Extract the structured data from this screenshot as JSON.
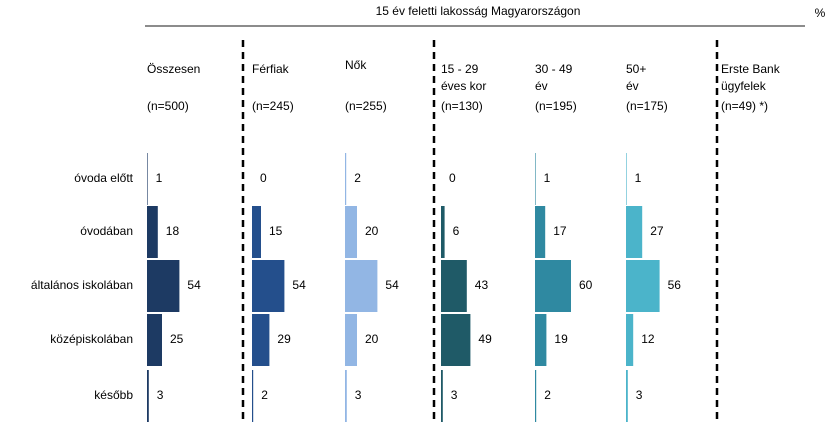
{
  "chart_data": {
    "type": "bar",
    "title": "15 év feletti lakosság Magyarországon",
    "unit": "%",
    "categories": [
      "óvoda előtt",
      "óvodában",
      "általános iskolában",
      "középiskolában",
      "később"
    ],
    "series": [
      {
        "name": [
          "Összesen"
        ],
        "n": "(n=500)",
        "color": "#1d3a63",
        "values": [
          1,
          18,
          54,
          25,
          3
        ]
      },
      {
        "name": [
          "Férfiak"
        ],
        "n": "(n=245)",
        "color": "#244f8c",
        "values": [
          0,
          15,
          54,
          29,
          2
        ]
      },
      {
        "name": [
          "Nők"
        ],
        "n": "(n=255)",
        "color": "#92b6e4",
        "values": [
          2,
          20,
          54,
          20,
          3
        ]
      },
      {
        "name": [
          "15 - 29",
          "éves kor"
        ],
        "n": "(n=130)",
        "color": "#1f5a67",
        "values": [
          0,
          6,
          43,
          49,
          3
        ]
      },
      {
        "name": [
          "30 - 49",
          "év"
        ],
        "n": "(n=195)",
        "color": "#2f89a1",
        "values": [
          1,
          17,
          60,
          19,
          2
        ]
      },
      {
        "name": [
          "50+",
          "év"
        ],
        "n": "(n=175)",
        "color": "#4bb4ca",
        "values": [
          1,
          27,
          56,
          12,
          3
        ]
      },
      {
        "name": [
          "Erste Bank",
          "ügyfelek"
        ],
        "n": "(n=49) *)",
        "values": [
          null,
          null,
          null,
          null,
          null
        ]
      }
    ]
  }
}
